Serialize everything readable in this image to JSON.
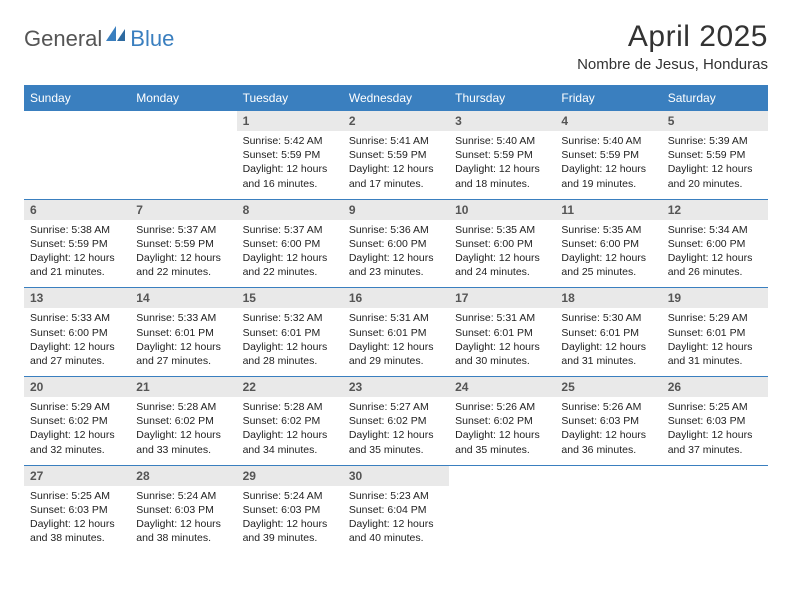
{
  "brand": {
    "part1": "General",
    "part2": "Blue"
  },
  "title": "April 2025",
  "location": "Nombre de Jesus, Honduras",
  "dows": [
    "Sunday",
    "Monday",
    "Tuesday",
    "Wednesday",
    "Thursday",
    "Friday",
    "Saturday"
  ],
  "colors": {
    "header_bg": "#3a7fbf",
    "header_text": "#ffffff",
    "daynum_bg": "#e9e9e9",
    "daynum_text": "#555555",
    "body_text": "#222222",
    "rule": "#3a7fbf",
    "page_bg": "#ffffff",
    "brand_gray": "#555555",
    "brand_blue": "#3a7fbf"
  },
  "typography": {
    "title_fontsize": 30,
    "location_fontsize": 15,
    "dow_fontsize": 12,
    "daynum_fontsize": 12,
    "body_fontsize": 10.5,
    "font_family": "Arial"
  },
  "weeks": [
    [
      null,
      null,
      {
        "n": "1",
        "sr": "5:42 AM",
        "ss": "5:59 PM",
        "dl": "12 hours and 16 minutes."
      },
      {
        "n": "2",
        "sr": "5:41 AM",
        "ss": "5:59 PM",
        "dl": "12 hours and 17 minutes."
      },
      {
        "n": "3",
        "sr": "5:40 AM",
        "ss": "5:59 PM",
        "dl": "12 hours and 18 minutes."
      },
      {
        "n": "4",
        "sr": "5:40 AM",
        "ss": "5:59 PM",
        "dl": "12 hours and 19 minutes."
      },
      {
        "n": "5",
        "sr": "5:39 AM",
        "ss": "5:59 PM",
        "dl": "12 hours and 20 minutes."
      }
    ],
    [
      {
        "n": "6",
        "sr": "5:38 AM",
        "ss": "5:59 PM",
        "dl": "12 hours and 21 minutes."
      },
      {
        "n": "7",
        "sr": "5:37 AM",
        "ss": "5:59 PM",
        "dl": "12 hours and 22 minutes."
      },
      {
        "n": "8",
        "sr": "5:37 AM",
        "ss": "6:00 PM",
        "dl": "12 hours and 22 minutes."
      },
      {
        "n": "9",
        "sr": "5:36 AM",
        "ss": "6:00 PM",
        "dl": "12 hours and 23 minutes."
      },
      {
        "n": "10",
        "sr": "5:35 AM",
        "ss": "6:00 PM",
        "dl": "12 hours and 24 minutes."
      },
      {
        "n": "11",
        "sr": "5:35 AM",
        "ss": "6:00 PM",
        "dl": "12 hours and 25 minutes."
      },
      {
        "n": "12",
        "sr": "5:34 AM",
        "ss": "6:00 PM",
        "dl": "12 hours and 26 minutes."
      }
    ],
    [
      {
        "n": "13",
        "sr": "5:33 AM",
        "ss": "6:00 PM",
        "dl": "12 hours and 27 minutes."
      },
      {
        "n": "14",
        "sr": "5:33 AM",
        "ss": "6:01 PM",
        "dl": "12 hours and 27 minutes."
      },
      {
        "n": "15",
        "sr": "5:32 AM",
        "ss": "6:01 PM",
        "dl": "12 hours and 28 minutes."
      },
      {
        "n": "16",
        "sr": "5:31 AM",
        "ss": "6:01 PM",
        "dl": "12 hours and 29 minutes."
      },
      {
        "n": "17",
        "sr": "5:31 AM",
        "ss": "6:01 PM",
        "dl": "12 hours and 30 minutes."
      },
      {
        "n": "18",
        "sr": "5:30 AM",
        "ss": "6:01 PM",
        "dl": "12 hours and 31 minutes."
      },
      {
        "n": "19",
        "sr": "5:29 AM",
        "ss": "6:01 PM",
        "dl": "12 hours and 31 minutes."
      }
    ],
    [
      {
        "n": "20",
        "sr": "5:29 AM",
        "ss": "6:02 PM",
        "dl": "12 hours and 32 minutes."
      },
      {
        "n": "21",
        "sr": "5:28 AM",
        "ss": "6:02 PM",
        "dl": "12 hours and 33 minutes."
      },
      {
        "n": "22",
        "sr": "5:28 AM",
        "ss": "6:02 PM",
        "dl": "12 hours and 34 minutes."
      },
      {
        "n": "23",
        "sr": "5:27 AM",
        "ss": "6:02 PM",
        "dl": "12 hours and 35 minutes."
      },
      {
        "n": "24",
        "sr": "5:26 AM",
        "ss": "6:02 PM",
        "dl": "12 hours and 35 minutes."
      },
      {
        "n": "25",
        "sr": "5:26 AM",
        "ss": "6:03 PM",
        "dl": "12 hours and 36 minutes."
      },
      {
        "n": "26",
        "sr": "5:25 AM",
        "ss": "6:03 PM",
        "dl": "12 hours and 37 minutes."
      }
    ],
    [
      {
        "n": "27",
        "sr": "5:25 AM",
        "ss": "6:03 PM",
        "dl": "12 hours and 38 minutes."
      },
      {
        "n": "28",
        "sr": "5:24 AM",
        "ss": "6:03 PM",
        "dl": "12 hours and 38 minutes."
      },
      {
        "n": "29",
        "sr": "5:24 AM",
        "ss": "6:03 PM",
        "dl": "12 hours and 39 minutes."
      },
      {
        "n": "30",
        "sr": "5:23 AM",
        "ss": "6:04 PM",
        "dl": "12 hours and 40 minutes."
      },
      null,
      null,
      null
    ]
  ],
  "labels": {
    "sunrise": "Sunrise: ",
    "sunset": "Sunset: ",
    "daylight": "Daylight: "
  }
}
